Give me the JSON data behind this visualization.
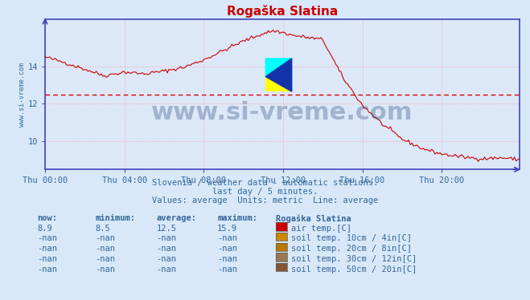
{
  "title": "Rogaška Slatina",
  "title_color": "#cc0000",
  "bg_color": "#d8e8f8",
  "plot_bg_color": "#dce8f8",
  "grid_color_dotted": "#ff9999",
  "axis_color": "#4444bb",
  "text_color": "#336699",
  "watermark": "www.si-vreme.com",
  "watermark_color": "#1a3a6a",
  "subtitle1": "Slovenia / weather data - automatic stations.",
  "subtitle2": "last day / 5 minutes.",
  "subtitle3": "Values: average  Units: metric  Line: average",
  "ylabel_text": "www.si-vreme.com",
  "xticklabels": [
    "Thu 00:00",
    "Thu 04:00",
    "Thu 08:00",
    "Thu 12:00",
    "Thu 16:00",
    "Thu 20:00"
  ],
  "yticks": [
    10,
    12,
    14
  ],
  "ylim": [
    8.5,
    16.5
  ],
  "xlim": [
    0,
    287
  ],
  "average_line": 12.5,
  "line_color": "#cc0000",
  "avg_line_color": "#dd0000",
  "table_headers": [
    "now:",
    "minimum:",
    "average:",
    "maximum:",
    "Rogaška Slatina"
  ],
  "table_rows": [
    [
      "8.9",
      "8.5",
      "12.5",
      "15.9",
      "air temp.[C]",
      "#cc0000"
    ],
    [
      "-nan",
      "-nan",
      "-nan",
      "-nan",
      "soil temp. 10cm / 4in[C]",
      "#cc8800"
    ],
    [
      "-nan",
      "-nan",
      "-nan",
      "-nan",
      "soil temp. 20cm / 8in[C]",
      "#bb7700"
    ],
    [
      "-nan",
      "-nan",
      "-nan",
      "-nan",
      "soil temp. 30cm / 12in[C]",
      "#997755"
    ],
    [
      "-nan",
      "-nan",
      "-nan",
      "-nan",
      "soil temp. 50cm / 20in[C]",
      "#885533"
    ]
  ]
}
